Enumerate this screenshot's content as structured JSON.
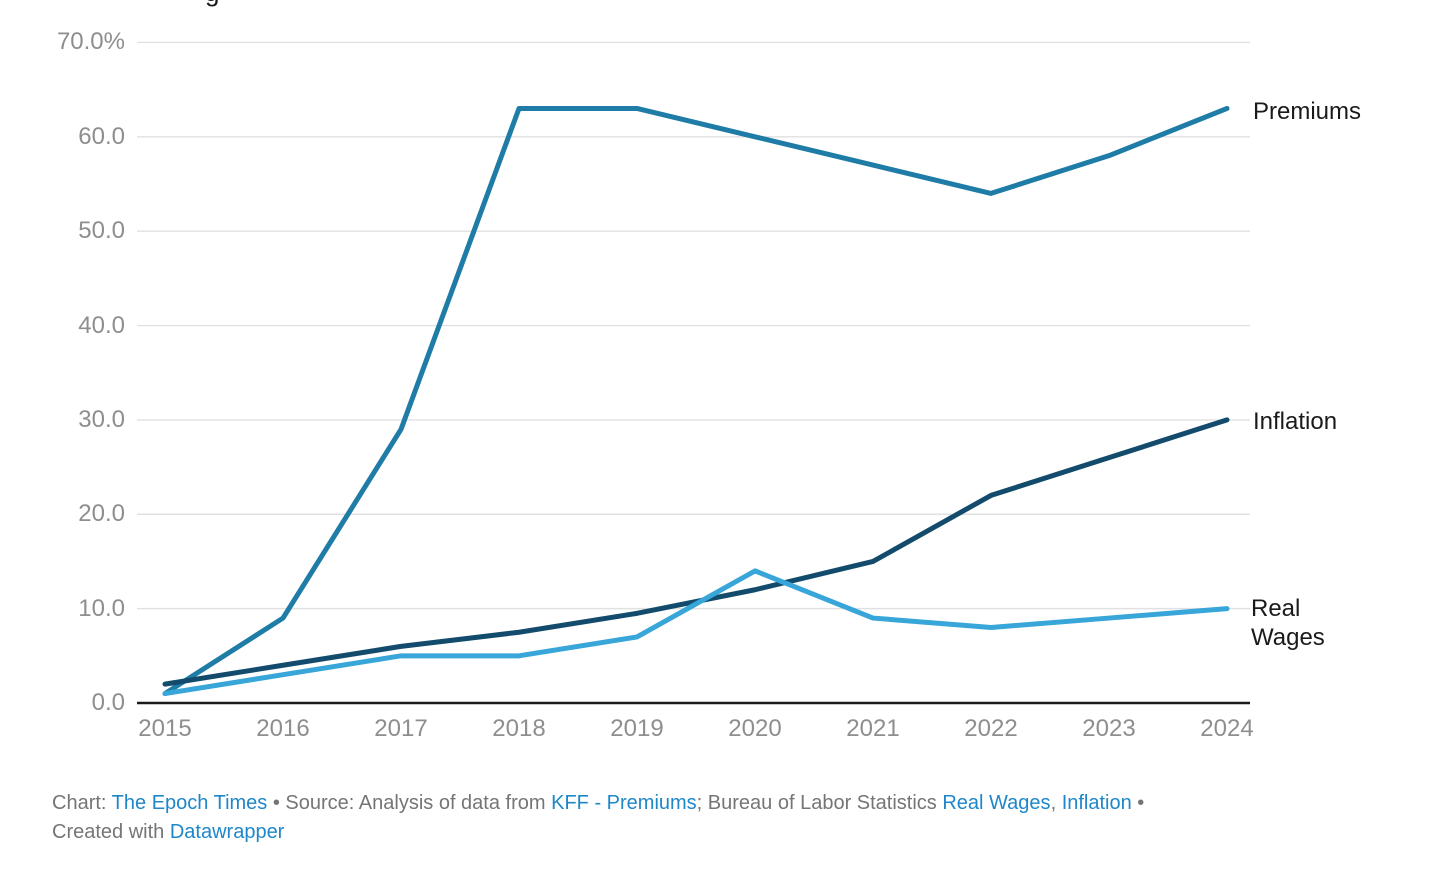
{
  "title_fragment": "g",
  "chart_data": {
    "type": "line",
    "x": [
      2015,
      2016,
      2017,
      2018,
      2019,
      2020,
      2021,
      2022,
      2023,
      2024
    ],
    "series": [
      {
        "name": "Premiums",
        "color": "#1e7ca6",
        "values": [
          1,
          9,
          29,
          63,
          63,
          60,
          57,
          54,
          58,
          63
        ]
      },
      {
        "name": "Inflation",
        "color": "#134b6d",
        "values": [
          2,
          4,
          6,
          7.5,
          9.5,
          12,
          15,
          22,
          26,
          30
        ]
      },
      {
        "name": "Real Wages",
        "color": "#38a6d8",
        "values": [
          1,
          3,
          5,
          5,
          7,
          14,
          9,
          8,
          9,
          10
        ]
      }
    ],
    "title": "",
    "xlabel": "",
    "ylabel": "",
    "ylim": [
      0,
      70
    ],
    "grid": true,
    "legend_position": "direct-labels-right",
    "yticks": [
      {
        "value": 70,
        "label": "70.0%"
      },
      {
        "value": 60,
        "label": "60.0"
      },
      {
        "value": 50,
        "label": "50.0"
      },
      {
        "value": 40,
        "label": "40.0"
      },
      {
        "value": 30,
        "label": "30.0"
      },
      {
        "value": 20,
        "label": "20.0"
      },
      {
        "value": 10,
        "label": "10.0"
      },
      {
        "value": 0,
        "label": "0.0"
      }
    ]
  },
  "axis": {
    "tick_color": "#8e8e8e",
    "grid_color": "#e1e1e1",
    "baseline_color": "#1a1a1a"
  },
  "footer": {
    "text_color": "#757575",
    "link_color": "#1d87c9",
    "line1": [
      {
        "text": "Chart: ",
        "type": "text"
      },
      {
        "text": "The Epoch Times",
        "type": "link"
      },
      {
        "text": " • Source: Analysis of data from ",
        "type": "text"
      },
      {
        "text": "KFF - Premiums",
        "type": "link"
      },
      {
        "text": "; Bureau of Labor Statistics ",
        "type": "text"
      },
      {
        "text": "Real Wages",
        "type": "link"
      },
      {
        "text": ", ",
        "type": "text"
      },
      {
        "text": "Inflation",
        "type": "link"
      },
      {
        "text": " •",
        "type": "text"
      }
    ],
    "line2": [
      {
        "text": "Created with ",
        "type": "text"
      },
      {
        "text": "Datawrapper",
        "type": "link"
      }
    ]
  }
}
